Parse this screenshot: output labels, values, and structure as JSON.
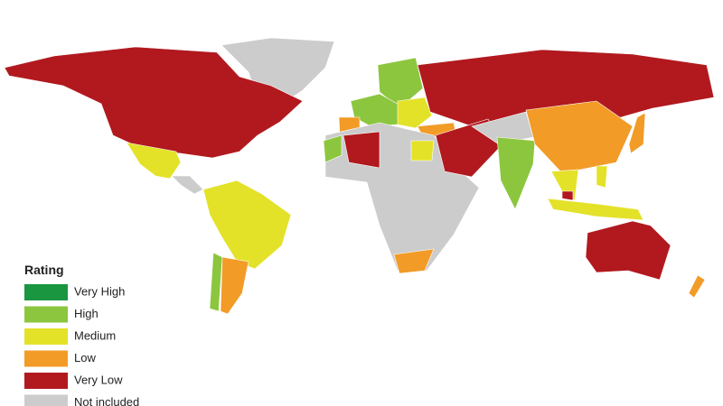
{
  "legend": {
    "title": "Rating",
    "items": [
      {
        "label": "Very High",
        "color": "#1a9641"
      },
      {
        "label": "High",
        "color": "#8cc63f"
      },
      {
        "label": "Medium",
        "color": "#e3e229"
      },
      {
        "label": "Low",
        "color": "#f29b27"
      },
      {
        "label": "Very Low",
        "color": "#b1191e"
      },
      {
        "label": "Not included",
        "color": "#cccccc"
      }
    ]
  }
}
